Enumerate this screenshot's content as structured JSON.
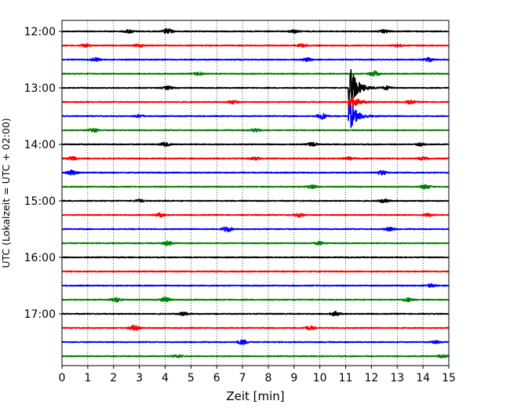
{
  "chart_data": {
    "type": "line",
    "subtype": "helicorder",
    "xlabel": "Zeit  [min]",
    "ylabel": "UTC (Lokalzeit = UTC + 02:00)",
    "xlim": [
      0,
      15
    ],
    "x_ticks": [
      "0",
      "1",
      "2",
      "3",
      "4",
      "5",
      "6",
      "7",
      "8",
      "9",
      "10",
      "11",
      "12",
      "13",
      "14",
      "15"
    ],
    "y_ticks": [
      "12:00",
      "13:00",
      "14:00",
      "15:00",
      "16:00",
      "17:00"
    ],
    "grid": "vertical dotted at each minute",
    "trace_interval_min": 15,
    "trace_colors": [
      "#000000",
      "#ff0000",
      "#0000ff",
      "#008000"
    ],
    "traces": [
      {
        "start": "12:00",
        "color": "#000000",
        "bursts": [
          [
            4.1,
            1.0
          ],
          [
            2.6,
            0.6
          ],
          [
            9.0,
            0.6
          ],
          [
            12.5,
            0.6
          ]
        ]
      },
      {
        "start": "12:15",
        "color": "#ff0000",
        "bursts": [
          [
            0.9,
            0.6
          ],
          [
            3.0,
            0.5
          ],
          [
            9.3,
            0.5
          ],
          [
            13.0,
            0.5
          ]
        ]
      },
      {
        "start": "12:30",
        "color": "#0000ff",
        "bursts": [
          [
            1.3,
            0.7
          ],
          [
            9.5,
            0.6
          ],
          [
            14.2,
            0.8
          ]
        ]
      },
      {
        "start": "12:45",
        "color": "#008000",
        "bursts": [
          [
            5.3,
            0.6
          ],
          [
            12.1,
            1.0
          ]
        ]
      },
      {
        "start": "13:00",
        "color": "#000000",
        "event": {
          "minute": 11.15,
          "peak": 5.0
        },
        "bursts": [
          [
            4.1,
            0.6
          ],
          [
            12.6,
            0.6
          ]
        ]
      },
      {
        "start": "13:15",
        "color": "#ff0000",
        "event": {
          "minute": 11.15,
          "peak": 1.8
        },
        "bursts": [
          [
            6.6,
            0.6
          ],
          [
            13.5,
            0.6
          ]
        ]
      },
      {
        "start": "13:30",
        "color": "#0000ff",
        "event": {
          "minute": 11.15,
          "peak": 3.0
        },
        "bursts": [
          [
            10.1,
            1.1
          ],
          [
            3.0,
            0.5
          ]
        ]
      },
      {
        "start": "13:45",
        "color": "#008000",
        "bursts": [
          [
            1.2,
            0.8
          ],
          [
            7.5,
            0.7
          ]
        ]
      },
      {
        "start": "14:00",
        "color": "#000000",
        "bursts": [
          [
            4.0,
            0.7
          ],
          [
            9.7,
            0.7
          ],
          [
            13.9,
            0.5
          ]
        ]
      },
      {
        "start": "14:15",
        "color": "#ff0000",
        "bursts": [
          [
            0.4,
            0.6
          ],
          [
            7.5,
            0.5
          ],
          [
            11.1,
            0.5
          ],
          [
            14.0,
            0.5
          ]
        ]
      },
      {
        "start": "14:30",
        "color": "#0000ff",
        "bursts": [
          [
            0.4,
            1.0
          ],
          [
            12.4,
            0.8
          ]
        ]
      },
      {
        "start": "14:45",
        "color": "#008000",
        "bursts": [
          [
            9.7,
            0.7
          ],
          [
            14.1,
            0.8
          ]
        ]
      },
      {
        "start": "15:00",
        "color": "#000000",
        "bursts": [
          [
            12.5,
            0.7
          ],
          [
            3.0,
            0.5
          ]
        ]
      },
      {
        "start": "15:15",
        "color": "#ff0000",
        "bursts": [
          [
            3.8,
            0.7
          ],
          [
            9.2,
            0.7
          ],
          [
            14.2,
            0.5
          ]
        ]
      },
      {
        "start": "15:30",
        "color": "#0000ff",
        "bursts": [
          [
            6.4,
            1.0
          ],
          [
            12.7,
            0.6
          ]
        ]
      },
      {
        "start": "15:45",
        "color": "#008000",
        "bursts": [
          [
            4.1,
            0.8
          ],
          [
            10.0,
            0.6
          ]
        ]
      },
      {
        "start": "16:00",
        "color": "#000000",
        "bursts": []
      },
      {
        "start": "16:15",
        "color": "#ff0000",
        "bursts": []
      },
      {
        "start": "16:30",
        "color": "#0000ff",
        "bursts": [
          [
            14.3,
            0.6
          ]
        ]
      },
      {
        "start": "16:45",
        "color": "#008000",
        "bursts": [
          [
            2.1,
            0.9
          ],
          [
            4.0,
            0.9
          ],
          [
            13.4,
            0.7
          ]
        ]
      },
      {
        "start": "17:00",
        "color": "#000000",
        "bursts": [
          [
            4.7,
            0.7
          ],
          [
            10.6,
            0.8
          ]
        ]
      },
      {
        "start": "17:15",
        "color": "#ff0000",
        "bursts": [
          [
            2.8,
            1.0
          ],
          [
            9.6,
            0.7
          ]
        ]
      },
      {
        "start": "17:30",
        "color": "#0000ff",
        "bursts": [
          [
            7.0,
            0.9
          ],
          [
            14.5,
            0.5
          ]
        ]
      },
      {
        "start": "17:45",
        "color": "#008000",
        "bursts": [
          [
            4.5,
            0.5
          ],
          [
            14.8,
            0.7
          ]
        ]
      }
    ]
  }
}
